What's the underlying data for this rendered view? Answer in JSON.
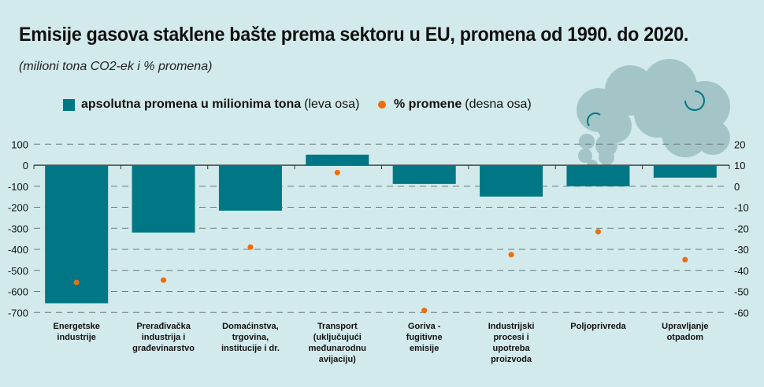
{
  "title": "Emisije gasova staklene bašte prema sektoru u EU, promena od 1990. do 2020.",
  "subtitle": "(milioni tona CO2-ek i % promena)",
  "legend": {
    "bar_bold": "apsolutna promena u milionima tona",
    "bar_rest": "(leva osa)",
    "dot_bold": "% promene",
    "dot_rest": "(desna osa)"
  },
  "colors": {
    "bar": "#007784",
    "dot": "#ef6c0c",
    "background": "#d2eaeb",
    "cloud": "#a3c5c7"
  },
  "decoration": "cloud-icon",
  "chart_data": {
    "type": "bar",
    "categories": [
      [
        "Energetske",
        "industrije"
      ],
      [
        "Prerađivačka",
        "industrija i",
        "građevinarstvo"
      ],
      [
        "Domaćinstva,",
        "trgovina,",
        "institucije i dr."
      ],
      [
        "Transport",
        "(uključujući",
        "međunarodnu",
        "avijaciju)"
      ],
      [
        "Goriva -",
        "fugitivne",
        "emisije"
      ],
      [
        "Industrijski",
        "procesi i",
        "upotreba",
        "proizvoda"
      ],
      [
        "Poljoprivreda"
      ],
      [
        "Upravljanje",
        "otpadom"
      ]
    ],
    "series": [
      {
        "name": "apsolutna promena u milionima tona",
        "type": "bar",
        "axis": "left",
        "values": [
          -656,
          -320,
          -216,
          50,
          -89,
          -149,
          -100,
          -59
        ]
      },
      {
        "name": "% promene",
        "type": "scatter",
        "axis": "right",
        "values": [
          -45.7,
          -44.6,
          -28.9,
          6.5,
          -59.0,
          -32.5,
          -21.6,
          -34.9
        ]
      }
    ],
    "left_axis": {
      "ylim": [
        -700,
        100
      ],
      "ticks": [
        100,
        0,
        -100,
        -200,
        -300,
        -400,
        -500,
        -600,
        -700
      ]
    },
    "right_axis": {
      "ylim": [
        -60,
        20
      ],
      "ticks": [
        20,
        10,
        0,
        -10,
        -20,
        -30,
        -40,
        -50,
        -60
      ]
    },
    "grid": true,
    "legend_position": "top"
  }
}
